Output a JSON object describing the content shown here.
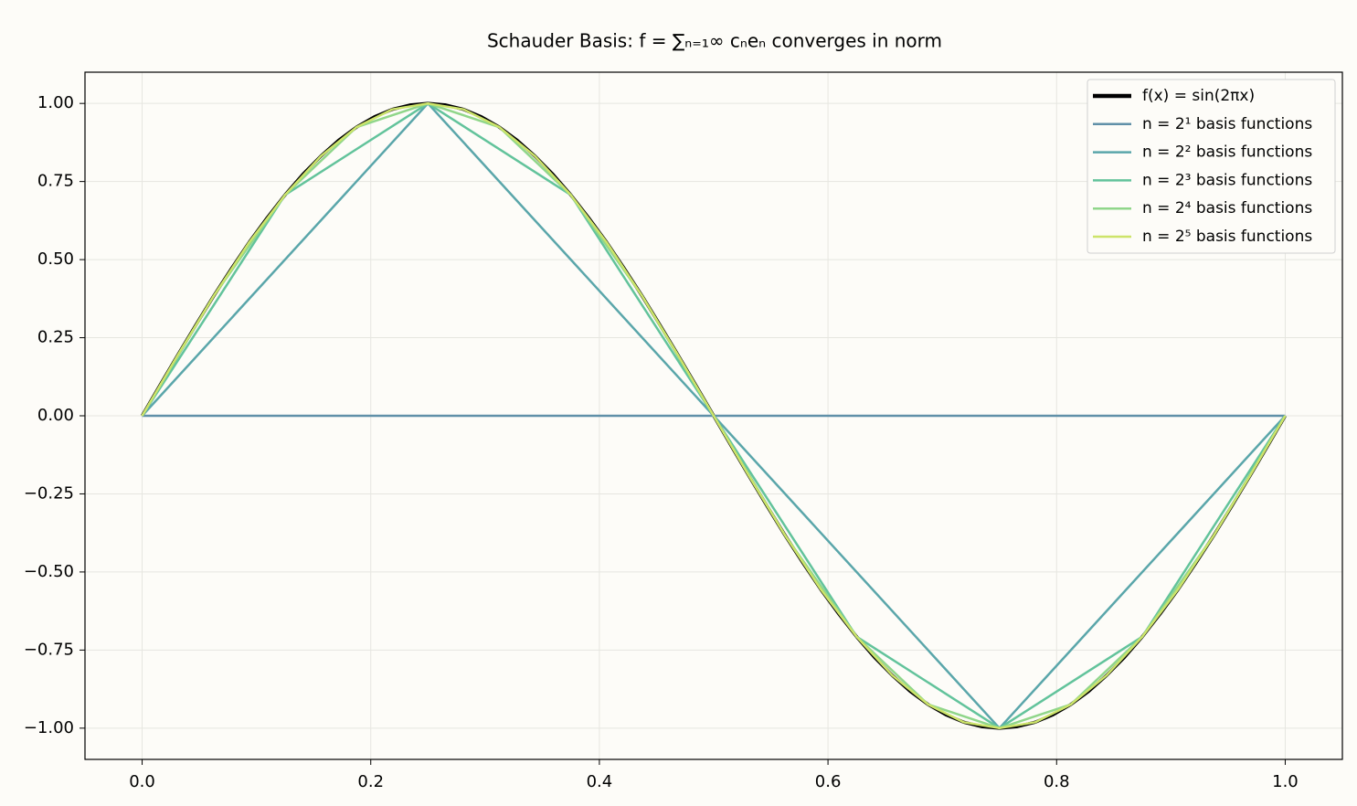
{
  "chart_data": {
    "type": "line",
    "title": "Schauder Basis: f = ∑ₙ₌₁∞ cₙeₙ converges in norm",
    "xlim": [
      -0.05,
      1.05
    ],
    "ylim": [
      -1.1,
      1.1
    ],
    "xticks": [
      {
        "value": 0,
        "label": "0.0"
      },
      0.2,
      0.4,
      0.6,
      0.8,
      {
        "value": 1,
        "label": "1.0"
      }
    ],
    "yticks": [
      {
        "value": -1,
        "label": "−1.00"
      },
      {
        "value": -0.75,
        "label": "−0.75"
      },
      {
        "value": -0.5,
        "label": "−0.50"
      },
      {
        "value": -0.25,
        "label": "−0.25"
      },
      {
        "value": 0,
        "label": "0.00"
      },
      {
        "value": 0.25,
        "label": "0.25"
      },
      {
        "value": 0.5,
        "label": "0.50"
      },
      {
        "value": 0.75,
        "label": "0.75"
      },
      {
        "value": 1,
        "label": "1.00"
      }
    ],
    "grid": true,
    "legend": "upper right",
    "series": [
      {
        "name": "f(x) = sin(2πx)",
        "color": "#000000",
        "x": [
          0,
          0.015625,
          0.03125,
          0.046875,
          0.0625,
          0.078125,
          0.09375,
          0.109375,
          0.125,
          0.140625,
          0.15625,
          0.171875,
          0.1875,
          0.203125,
          0.21875,
          0.234375,
          0.25,
          0.265625,
          0.28125,
          0.296875,
          0.3125,
          0.328125,
          0.34375,
          0.359375,
          0.375,
          0.390625,
          0.40625,
          0.421875,
          0.4375,
          0.453125,
          0.46875,
          0.484375,
          0.5,
          0.515625,
          0.53125,
          0.546875,
          0.5625,
          0.578125,
          0.59375,
          0.609375,
          0.625,
          0.640625,
          0.65625,
          0.671875,
          0.6875,
          0.703125,
          0.71875,
          0.734375,
          0.75,
          0.765625,
          0.78125,
          0.796875,
          0.8125,
          0.828125,
          0.84375,
          0.859375,
          0.875,
          0.890625,
          0.90625,
          0.921875,
          0.9375,
          0.953125,
          0.96875,
          0.984375,
          1
        ],
        "values": [
          0,
          0.098,
          0.195,
          0.29,
          0.383,
          0.471,
          0.556,
          0.634,
          0.707,
          0.773,
          0.831,
          0.882,
          0.924,
          0.957,
          0.981,
          0.995,
          1,
          0.995,
          0.981,
          0.957,
          0.924,
          0.882,
          0.831,
          0.773,
          0.707,
          0.634,
          0.556,
          0.471,
          0.383,
          0.29,
          0.195,
          0.098,
          0,
          -0.098,
          -0.195,
          -0.29,
          -0.383,
          -0.471,
          -0.556,
          -0.634,
          -0.707,
          -0.773,
          -0.831,
          -0.882,
          -0.924,
          -0.957,
          -0.981,
          -0.995,
          -1,
          -0.995,
          -0.981,
          -0.957,
          -0.924,
          -0.882,
          -0.831,
          -0.773,
          -0.707,
          -0.634,
          -0.556,
          -0.471,
          -0.383,
          -0.29,
          -0.195,
          -0.098,
          0
        ]
      },
      {
        "name": "n = 2¹ basis functions",
        "color": "#6090a8",
        "x": [
          0,
          0.5,
          1
        ],
        "values": [
          0,
          0,
          0
        ]
      },
      {
        "name": "n = 2² basis functions",
        "color": "#5aa6aa",
        "x": [
          0,
          0.25,
          0.5,
          0.75,
          1
        ],
        "values": [
          0,
          1,
          0,
          -1,
          0
        ]
      },
      {
        "name": "n = 2³ basis functions",
        "color": "#62c39b",
        "x": [
          0,
          0.125,
          0.25,
          0.375,
          0.5,
          0.625,
          0.75,
          0.875,
          1
        ],
        "values": [
          0,
          0.707,
          1,
          0.707,
          0,
          -0.707,
          -1,
          -0.707,
          0
        ]
      },
      {
        "name": "n = 2⁴ basis functions",
        "color": "#90d68a",
        "x": [
          0,
          0.0625,
          0.125,
          0.1875,
          0.25,
          0.3125,
          0.375,
          0.4375,
          0.5,
          0.5625,
          0.625,
          0.6875,
          0.75,
          0.8125,
          0.875,
          0.9375,
          1
        ],
        "values": [
          0,
          0.383,
          0.707,
          0.924,
          1,
          0.924,
          0.707,
          0.383,
          0,
          -0.383,
          -0.707,
          -0.924,
          -1,
          -0.924,
          -0.707,
          -0.383,
          0
        ]
      },
      {
        "name": "n = 2⁵ basis functions",
        "color": "#cde46a",
        "x": [
          0,
          0.03125,
          0.0625,
          0.09375,
          0.125,
          0.15625,
          0.1875,
          0.21875,
          0.25,
          0.28125,
          0.3125,
          0.34375,
          0.375,
          0.40625,
          0.4375,
          0.46875,
          0.5,
          0.53125,
          0.5625,
          0.59375,
          0.625,
          0.65625,
          0.6875,
          0.71875,
          0.75,
          0.78125,
          0.8125,
          0.84375,
          0.875,
          0.90625,
          0.9375,
          0.96875,
          1
        ],
        "values": [
          0,
          0.195,
          0.383,
          0.556,
          0.707,
          0.831,
          0.924,
          0.981,
          1,
          0.981,
          0.924,
          0.831,
          0.707,
          0.556,
          0.383,
          0.195,
          0,
          -0.195,
          -0.383,
          -0.556,
          -0.707,
          -0.831,
          -0.924,
          -0.981,
          -1,
          -0.981,
          -0.924,
          -0.831,
          -0.707,
          -0.556,
          -0.383,
          -0.195,
          0
        ]
      }
    ]
  }
}
